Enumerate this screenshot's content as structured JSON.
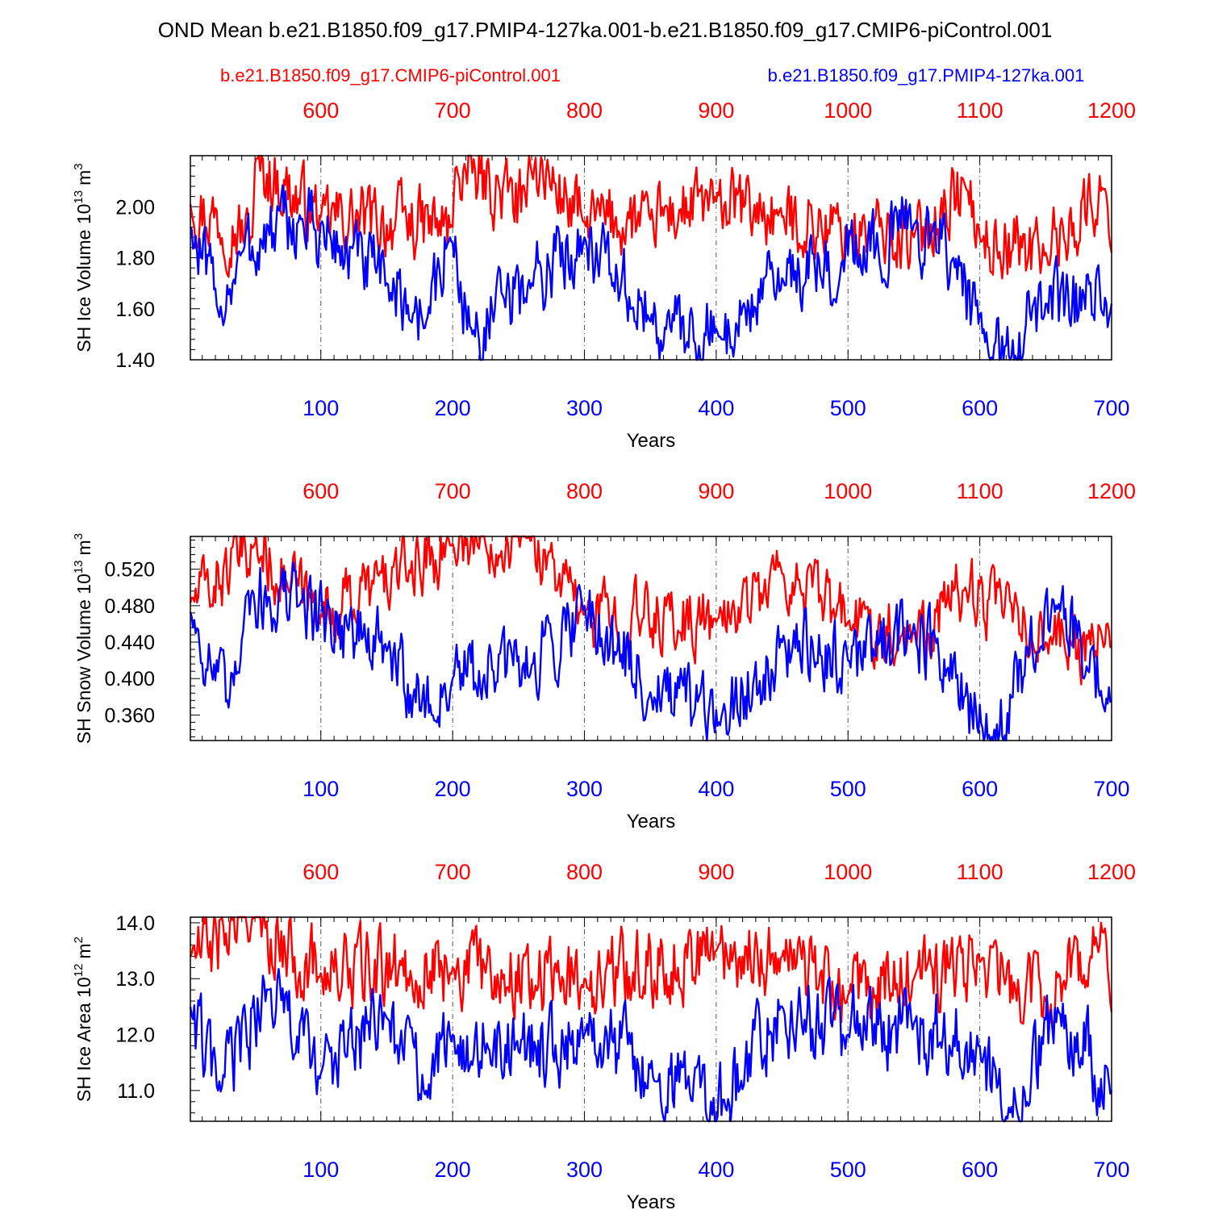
{
  "title": "OND Mean b.e21.B1850.f09_g17.PMIP4-127ka.001-b.e21.B1850.f09_g17.CMIP6-piControl.001",
  "colors": {
    "control": "#ff0000",
    "pmip": "#0000ff",
    "axis": "#000000"
  },
  "legend": {
    "control_label": "b.e21.B1850.f09_g17.CMIP6-piControl.001",
    "pmip_label": "b.e21.B1850.f09_g17.PMIP4-127ka.001"
  },
  "chart_data": [
    {
      "type": "line",
      "title": "",
      "xlabel": "Years",
      "ylabel": "SH Ice Volume 10",
      "ylabel_exp": "13",
      "ylabel_unit": "m",
      "ylabel_unit_exp": "3",
      "ylim": [
        1.4,
        2.2
      ],
      "yticks": [
        1.4,
        1.6,
        1.8,
        2.0
      ],
      "ytick_labels": [
        "1.40",
        "1.60",
        "1.80",
        "2.00"
      ],
      "xlim_bottom": [
        1,
        700
      ],
      "xticks_bottom": [
        100,
        200,
        300,
        400,
        500,
        600,
        700
      ],
      "xlim_top": [
        501,
        1200
      ],
      "xticks_top": [
        600,
        700,
        800,
        900,
        1000,
        1100,
        1200
      ],
      "grid": "vertical dashed",
      "series": [
        {
          "name": "b.e21.B1850.f09_g17.CMIP6-piControl.001",
          "axis": "top",
          "color": "#ff0000",
          "x_range": [
            501,
            1200
          ],
          "anchors": [
            [
              501,
              2.01
            ],
            [
              548,
              1.88
            ],
            [
              550,
              2.17
            ],
            [
              600,
              1.96
            ],
            [
              700,
              1.92
            ],
            [
              702,
              2.15
            ],
            [
              756,
              2.0
            ],
            [
              758,
              2.2
            ],
            [
              800,
              1.94
            ],
            [
              850,
              1.95
            ],
            [
              900,
              2.02
            ],
            [
              950,
              1.96
            ],
            [
              1000,
              1.9
            ],
            [
              1050,
              1.88
            ],
            [
              1089,
              2.08
            ],
            [
              1100,
              1.88
            ],
            [
              1150,
              1.82
            ],
            [
              1195,
              2.07
            ],
            [
              1200,
              1.82
            ]
          ],
          "mean": 1.93,
          "amplitude": 0.17
        },
        {
          "name": "b.e21.B1850.f09_g17.PMIP4-127ka.001",
          "axis": "bottom",
          "color": "#0000ff",
          "x_range": [
            1,
            700
          ],
          "anchors": [
            [
              1,
              1.92
            ],
            [
              22,
              1.59
            ],
            [
              40,
              1.82
            ],
            [
              85,
              1.95
            ],
            [
              150,
              1.7
            ],
            [
              180,
              1.55
            ],
            [
              198,
              1.88
            ],
            [
              215,
              1.5
            ],
            [
              260,
              1.7
            ],
            [
              300,
              1.88
            ],
            [
              350,
              1.55
            ],
            [
              402,
              1.49
            ],
            [
              450,
              1.72
            ],
            [
              495,
              1.78
            ],
            [
              550,
              1.93
            ],
            [
              580,
              1.8
            ],
            [
              608,
              1.38
            ],
            [
              650,
              1.62
            ],
            [
              700,
              1.62
            ]
          ],
          "mean": 1.72,
          "amplitude": 0.18
        }
      ]
    },
    {
      "type": "line",
      "title": "",
      "xlabel": "Years",
      "ylabel": "SH Snow Volume 10",
      "ylabel_exp": "13",
      "ylabel_unit": "m",
      "ylabel_unit_exp": "3",
      "ylim": [
        0.332,
        0.556
      ],
      "yticks": [
        0.36,
        0.4,
        0.44,
        0.48,
        0.52
      ],
      "ytick_labels": [
        "0.360",
        "0.400",
        "0.440",
        "0.480",
        "0.520"
      ],
      "xlim_bottom": [
        1,
        700
      ],
      "xticks_bottom": [
        100,
        200,
        300,
        400,
        500,
        600,
        700
      ],
      "xlim_top": [
        501,
        1200
      ],
      "xticks_top": [
        600,
        700,
        800,
        900,
        1000,
        1100,
        1200
      ],
      "grid": "vertical dashed",
      "series": [
        {
          "name": "b.e21.B1850.f09_g17.CMIP6-piControl.001",
          "axis": "top",
          "color": "#ff0000",
          "x_range": [
            501,
            1200
          ],
          "anchors": [
            [
              501,
              0.483
            ],
            [
              549,
              0.545
            ],
            [
              600,
              0.47
            ],
            [
              700,
              0.548
            ],
            [
              758,
              0.56
            ],
            [
              800,
              0.47
            ],
            [
              900,
              0.462
            ],
            [
              950,
              0.515
            ],
            [
              1000,
              0.462
            ],
            [
              1050,
              0.45
            ],
            [
              1089,
              0.5
            ],
            [
              1150,
              0.44
            ],
            [
              1200,
              0.436
            ]
          ],
          "mean": 0.465,
          "amplitude": 0.045
        },
        {
          "name": "b.e21.B1850.f09_g17.PMIP4-127ka.001",
          "axis": "bottom",
          "color": "#0000ff",
          "x_range": [
            1,
            700
          ],
          "anchors": [
            [
              1,
              0.473
            ],
            [
              30,
              0.368
            ],
            [
              43,
              0.49
            ],
            [
              85,
              0.485
            ],
            [
              150,
              0.43
            ],
            [
              185,
              0.36
            ],
            [
              200,
              0.4
            ],
            [
              260,
              0.415
            ],
            [
              300,
              0.48
            ],
            [
              350,
              0.385
            ],
            [
              402,
              0.352
            ],
            [
              450,
              0.44
            ],
            [
              500,
              0.42
            ],
            [
              550,
              0.46
            ],
            [
              608,
              0.332
            ],
            [
              660,
              0.482
            ],
            [
              700,
              0.375
            ]
          ],
          "mean": 0.42,
          "amplitude": 0.05
        }
      ]
    },
    {
      "type": "line",
      "title": "",
      "xlabel": "Years",
      "ylabel": "SH Ice Area 10",
      "ylabel_exp": "12",
      "ylabel_unit": "m",
      "ylabel_unit_exp": "2",
      "ylim": [
        10.45,
        14.1
      ],
      "yticks": [
        11.0,
        12.0,
        13.0,
        14.0
      ],
      "ytick_labels": [
        "11.0",
        "12.0",
        "13.0",
        "14.0"
      ],
      "xlim_bottom": [
        1,
        700
      ],
      "xticks_bottom": [
        100,
        200,
        300,
        400,
        500,
        600,
        700
      ],
      "xlim_top": [
        501,
        1200
      ],
      "xticks_top": [
        600,
        700,
        800,
        900,
        1000,
        1100,
        1200
      ],
      "grid": "vertical dashed",
      "series": [
        {
          "name": "b.e21.B1850.f09_g17.CMIP6-piControl.001",
          "axis": "top",
          "color": "#ff0000",
          "x_range": [
            501,
            1200
          ],
          "anchors": [
            [
              501,
              13.4
            ],
            [
              548,
              14.1
            ],
            [
              600,
              13.1
            ],
            [
              700,
              13.2
            ],
            [
              800,
              13.0
            ],
            [
              900,
              13.5
            ],
            [
              950,
              13.4
            ],
            [
              1000,
              12.7
            ],
            [
              1050,
              13.0
            ],
            [
              1100,
              13.3
            ],
            [
              1150,
              12.6
            ],
            [
              1195,
              13.9
            ],
            [
              1200,
              12.4
            ]
          ],
          "mean": 13.0,
          "amplitude": 0.85
        },
        {
          "name": "b.e21.B1850.f09_g17.PMIP4-127ka.001",
          "axis": "bottom",
          "color": "#0000ff",
          "x_range": [
            1,
            700
          ],
          "anchors": [
            [
              1,
              12.5
            ],
            [
              22,
              11.0
            ],
            [
              60,
              12.8
            ],
            [
              100,
              11.3
            ],
            [
              150,
              12.3
            ],
            [
              180,
              11.0
            ],
            [
              200,
              12.0
            ],
            [
              250,
              11.7
            ],
            [
              300,
              12.0
            ],
            [
              350,
              11.4
            ],
            [
              407,
              10.7
            ],
            [
              450,
              12.5
            ],
            [
              500,
              12.0
            ],
            [
              550,
              12.2
            ],
            [
              600,
              11.8
            ],
            [
              621,
              10.5
            ],
            [
              660,
              12.4
            ],
            [
              700,
              11.0
            ]
          ],
          "mean": 11.8,
          "amplitude": 0.9
        }
      ]
    }
  ]
}
